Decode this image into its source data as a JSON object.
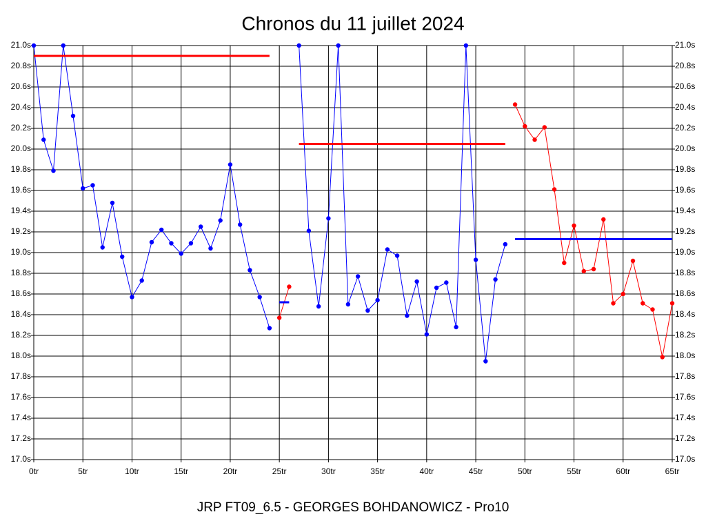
{
  "chart_data": {
    "type": "line",
    "title": "Chronos du 11 juillet 2024",
    "xlabel": "JRP FT09_6.5 - GEORGES BOHDANOWICZ - Pro10",
    "xlim": [
      0,
      65
    ],
    "ylim": [
      17,
      21
    ],
    "grid": true,
    "xticks": [
      {
        "value": 0,
        "label": "0tr"
      },
      {
        "value": 5,
        "label": "5tr"
      },
      {
        "value": 10,
        "label": "10tr"
      },
      {
        "value": 15,
        "label": "15tr"
      },
      {
        "value": 20,
        "label": "20tr"
      },
      {
        "value": 25,
        "label": "25tr"
      },
      {
        "value": 30,
        "label": "30tr"
      },
      {
        "value": 35,
        "label": "35tr"
      },
      {
        "value": 40,
        "label": "40tr"
      },
      {
        "value": 45,
        "label": "45tr"
      },
      {
        "value": 50,
        "label": "50tr"
      },
      {
        "value": 55,
        "label": "55tr"
      },
      {
        "value": 60,
        "label": "60tr"
      },
      {
        "value": 65,
        "label": "65tr"
      }
    ],
    "yticks": [
      {
        "value": 17.0,
        "label": "17.0s"
      },
      {
        "value": 17.2,
        "label": "17.2s"
      },
      {
        "value": 17.4,
        "label": "17.4s"
      },
      {
        "value": 17.6,
        "label": "17.6s"
      },
      {
        "value": 17.8,
        "label": "17.8s"
      },
      {
        "value": 18.0,
        "label": "18.0s"
      },
      {
        "value": 18.2,
        "label": "18.2s"
      },
      {
        "value": 18.4,
        "label": "18.4s"
      },
      {
        "value": 18.6,
        "label": "18.6s"
      },
      {
        "value": 18.8,
        "label": "18.8s"
      },
      {
        "value": 19.0,
        "label": "19.0s"
      },
      {
        "value": 19.2,
        "label": "19.2s"
      },
      {
        "value": 19.4,
        "label": "19.4s"
      },
      {
        "value": 19.6,
        "label": "19.6s"
      },
      {
        "value": 19.8,
        "label": "19.8s"
      },
      {
        "value": 20.0,
        "label": "20.0s"
      },
      {
        "value": 20.2,
        "label": "20.2s"
      },
      {
        "value": 20.4,
        "label": "20.4s"
      },
      {
        "value": 20.6,
        "label": "20.6s"
      },
      {
        "value": 20.8,
        "label": "20.8s"
      },
      {
        "value": 21.0,
        "label": "21.0s"
      }
    ],
    "series": [
      {
        "color": "#0000ff",
        "markers": true,
        "x": [
          0,
          1,
          2,
          3,
          4,
          5,
          6,
          7,
          8,
          9,
          10,
          11,
          12,
          13,
          14,
          15,
          16,
          17,
          18,
          19,
          20,
          21,
          22,
          23,
          24
        ],
        "values": [
          21.0,
          20.09,
          19.79,
          21.0,
          20.32,
          19.62,
          19.65,
          19.05,
          19.48,
          18.96,
          18.57,
          18.73,
          19.1,
          19.22,
          19.09,
          18.99,
          19.09,
          19.25,
          19.04,
          19.31,
          19.85,
          19.27,
          18.83,
          18.57,
          18.27
        ]
      },
      {
        "color": "#ff0000",
        "markers": true,
        "x": [
          25,
          26
        ],
        "values": [
          18.37,
          18.67
        ]
      },
      {
        "color": "#0000ff",
        "markers": true,
        "x": [
          27,
          28,
          29,
          30,
          31,
          32,
          33,
          34,
          35,
          36,
          37,
          38,
          39,
          40,
          41,
          42,
          43,
          44,
          45,
          46,
          47,
          48
        ],
        "values": [
          21.0,
          19.21,
          18.48,
          19.33,
          21.0,
          18.5,
          18.77,
          18.44,
          18.54,
          19.03,
          18.97,
          18.39,
          18.72,
          18.21,
          18.66,
          18.71,
          18.28,
          21.0,
          18.93,
          17.95,
          18.74,
          19.08
        ]
      },
      {
        "color": "#ff0000",
        "markers": true,
        "x": [
          49,
          50,
          51,
          52,
          53,
          54,
          55,
          56,
          57,
          58,
          59,
          60,
          61,
          62,
          63,
          64,
          65
        ],
        "values": [
          20.43,
          20.22,
          20.09,
          20.21,
          19.61,
          18.9,
          19.26,
          18.82,
          18.84,
          19.32,
          18.51,
          18.6,
          18.92,
          18.51,
          18.45,
          17.99,
          18.51
        ]
      },
      {
        "color": "#ff0000",
        "markers": false,
        "x": [
          0,
          24
        ],
        "values": [
          20.9,
          20.9
        ]
      },
      {
        "color": "#0000ff",
        "markers": false,
        "x": [
          25,
          26
        ],
        "values": [
          18.52,
          18.52
        ]
      },
      {
        "color": "#ff0000",
        "markers": false,
        "x": [
          27,
          48
        ],
        "values": [
          20.05,
          20.05
        ]
      },
      {
        "color": "#0000ff",
        "markers": false,
        "x": [
          49,
          65
        ],
        "values": [
          19.13,
          19.13
        ]
      }
    ]
  }
}
